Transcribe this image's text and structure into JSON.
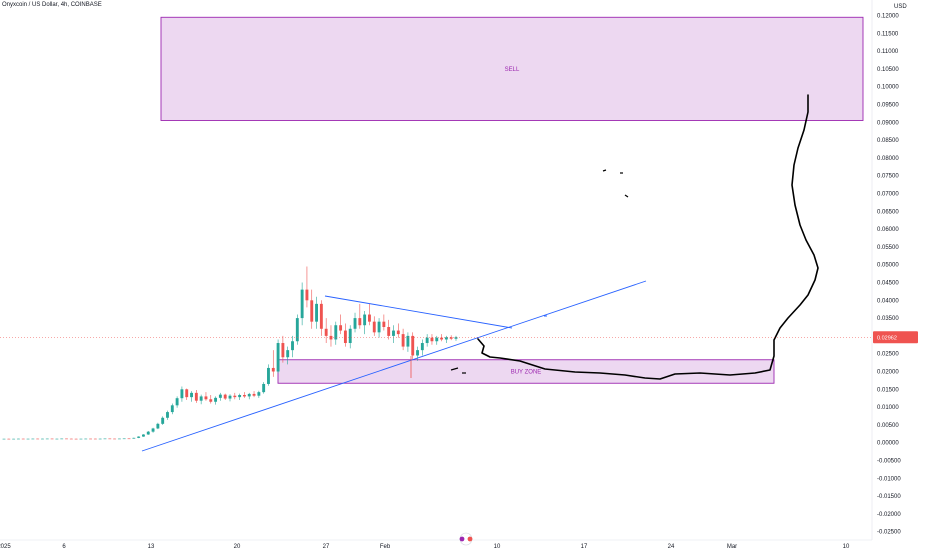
{
  "header": {
    "symbol_title": "Onyxcoin / US Dollar, 4h, COINBASE"
  },
  "colors": {
    "up": "#26a69a",
    "down": "#ef5350",
    "zone_fill": "rgba(156,39,176,0.18)",
    "zone_stroke": "#9c27b0",
    "trendline": "#2962ff",
    "drawing": "#000000",
    "price_tag": "#ef5350"
  },
  "chart_data": {
    "type": "candlestick",
    "y_unit": "USD",
    "ylim": [
      -0.025,
      0.122
    ],
    "y_ticks": [
      "0.12000",
      "0.11500",
      "0.11000",
      "0.10500",
      "0.10000",
      "0.09500",
      "0.09000",
      "0.08500",
      "0.08000",
      "0.07500",
      "0.07000",
      "0.06500",
      "0.06000",
      "0.05500",
      "0.05000",
      "0.04500",
      "0.04000",
      "0.03500",
      "0.03000",
      "0.02500",
      "0.02000",
      "0.01500",
      "0.01000",
      "0.00500",
      "0.00000",
      "-0.00500",
      "-0.01000",
      "-0.01500",
      "-0.02000",
      "-0.02500"
    ],
    "x_ticks": [
      "2025",
      "6",
      "13",
      "20",
      "27",
      "Feb",
      "10",
      "17",
      "24",
      "Mar",
      "10"
    ],
    "current_price": "0.02962",
    "current_price_value": 0.02962,
    "zones": [
      {
        "label": "SELL",
        "ymin": 0.0905,
        "ymax": 0.1195
      },
      {
        "label": "BUY ZONE",
        "ymin": 0.0167,
        "ymax": 0.0233
      }
    ],
    "candles": [
      [
        0.0011,
        0.00112,
        0.00108,
        0.0011
      ],
      [
        0.0011,
        0.00113,
        0.00107,
        0.00109
      ],
      [
        0.00109,
        0.00111,
        0.00106,
        0.0011
      ],
      [
        0.0011,
        0.00114,
        0.00108,
        0.00112
      ],
      [
        0.00112,
        0.00113,
        0.00107,
        0.00108
      ],
      [
        0.00108,
        0.00112,
        0.00106,
        0.00111
      ],
      [
        0.00111,
        0.00115,
        0.00109,
        0.00113
      ],
      [
        0.00113,
        0.00114,
        0.00108,
        0.00109
      ],
      [
        0.00109,
        0.00113,
        0.00107,
        0.00112
      ],
      [
        0.00112,
        0.00116,
        0.0011,
        0.00114
      ],
      [
        0.00114,
        0.00115,
        0.00109,
        0.0011
      ],
      [
        0.0011,
        0.00113,
        0.00107,
        0.00111
      ],
      [
        0.00111,
        0.00116,
        0.00109,
        0.00115
      ],
      [
        0.00115,
        0.00117,
        0.00111,
        0.00112
      ],
      [
        0.00112,
        0.00114,
        0.00108,
        0.0011
      ],
      [
        0.0011,
        0.00113,
        0.00106,
        0.00109
      ],
      [
        0.00109,
        0.00112,
        0.00106,
        0.00111
      ],
      [
        0.00111,
        0.00114,
        0.00108,
        0.00113
      ],
      [
        0.00113,
        0.00116,
        0.0011,
        0.00112
      ],
      [
        0.00112,
        0.00114,
        0.00108,
        0.00109
      ],
      [
        0.00109,
        0.00113,
        0.00107,
        0.00112
      ],
      [
        0.00112,
        0.00118,
        0.0011,
        0.00116
      ],
      [
        0.00116,
        0.00118,
        0.00111,
        0.00113
      ],
      [
        0.00113,
        0.00115,
        0.00109,
        0.00111
      ],
      [
        0.00111,
        0.00116,
        0.00109,
        0.00114
      ],
      [
        0.00114,
        0.0012,
        0.00112,
        0.00118
      ],
      [
        0.00118,
        0.00122,
        0.00113,
        0.00115
      ],
      [
        0.00115,
        0.0014,
        0.00113,
        0.00136
      ],
      [
        0.00136,
        0.0018,
        0.0013,
        0.00172
      ],
      [
        0.00172,
        0.0024,
        0.00165,
        0.0023
      ],
      [
        0.0023,
        0.0033,
        0.0022,
        0.0031
      ],
      [
        0.0031,
        0.0042,
        0.0028,
        0.004
      ],
      [
        0.004,
        0.0056,
        0.0038,
        0.0053
      ],
      [
        0.0053,
        0.0074,
        0.005,
        0.007
      ],
      [
        0.007,
        0.009,
        0.0064,
        0.0086
      ],
      [
        0.0086,
        0.011,
        0.008,
        0.0105
      ],
      [
        0.0105,
        0.013,
        0.0098,
        0.0125
      ],
      [
        0.0125,
        0.0158,
        0.0115,
        0.015
      ],
      [
        0.015,
        0.0152,
        0.012,
        0.0128
      ],
      [
        0.0128,
        0.0145,
        0.0115,
        0.014
      ],
      [
        0.014,
        0.0148,
        0.0112,
        0.0118
      ],
      [
        0.0118,
        0.0135,
        0.0108,
        0.013
      ],
      [
        0.013,
        0.0142,
        0.0118,
        0.0122
      ],
      [
        0.0122,
        0.0134,
        0.011,
        0.0115
      ],
      [
        0.0115,
        0.013,
        0.0107,
        0.0126
      ],
      [
        0.0126,
        0.014,
        0.0118,
        0.0135
      ],
      [
        0.0135,
        0.0138,
        0.012,
        0.0124
      ],
      [
        0.0124,
        0.0136,
        0.0116,
        0.0132
      ],
      [
        0.0132,
        0.014,
        0.0122,
        0.0128
      ],
      [
        0.0128,
        0.0138,
        0.012,
        0.0134
      ],
      [
        0.0134,
        0.0142,
        0.0126,
        0.013
      ],
      [
        0.013,
        0.014,
        0.0122,
        0.0137
      ],
      [
        0.0137,
        0.0145,
        0.0128,
        0.0132
      ],
      [
        0.0132,
        0.0146,
        0.0126,
        0.0142
      ],
      [
        0.0142,
        0.017,
        0.0138,
        0.0165
      ],
      [
        0.0165,
        0.022,
        0.016,
        0.021
      ],
      [
        0.021,
        0.026,
        0.0185,
        0.02
      ],
      [
        0.02,
        0.029,
        0.0195,
        0.028
      ],
      [
        0.028,
        0.03,
        0.0225,
        0.024
      ],
      [
        0.024,
        0.027,
        0.022,
        0.026
      ],
      [
        0.026,
        0.03,
        0.024,
        0.0285
      ],
      [
        0.0285,
        0.036,
        0.0275,
        0.035
      ],
      [
        0.035,
        0.045,
        0.033,
        0.043
      ],
      [
        0.043,
        0.0495,
        0.038,
        0.04
      ],
      [
        0.04,
        0.043,
        0.032,
        0.034
      ],
      [
        0.034,
        0.041,
        0.032,
        0.039
      ],
      [
        0.039,
        0.04,
        0.03,
        0.032
      ],
      [
        0.032,
        0.035,
        0.028,
        0.03
      ],
      [
        0.03,
        0.033,
        0.027,
        0.029
      ],
      [
        0.029,
        0.034,
        0.0275,
        0.033
      ],
      [
        0.033,
        0.036,
        0.0305,
        0.0315
      ],
      [
        0.0315,
        0.0335,
        0.027,
        0.028
      ],
      [
        0.028,
        0.033,
        0.0265,
        0.032
      ],
      [
        0.032,
        0.0365,
        0.031,
        0.035
      ],
      [
        0.035,
        0.039,
        0.032,
        0.033
      ],
      [
        0.033,
        0.037,
        0.0305,
        0.036
      ],
      [
        0.036,
        0.039,
        0.033,
        0.034
      ],
      [
        0.034,
        0.0355,
        0.03,
        0.031
      ],
      [
        0.031,
        0.035,
        0.0295,
        0.034
      ],
      [
        0.034,
        0.036,
        0.0315,
        0.0325
      ],
      [
        0.0325,
        0.0345,
        0.029,
        0.03
      ],
      [
        0.03,
        0.033,
        0.028,
        0.0315
      ],
      [
        0.0315,
        0.0335,
        0.0295,
        0.0305
      ],
      [
        0.0305,
        0.032,
        0.026,
        0.027
      ],
      [
        0.027,
        0.031,
        0.0255,
        0.03
      ],
      [
        0.03,
        0.031,
        0.0235,
        0.0245
      ],
      [
        0.0245,
        0.027,
        0.023,
        0.026
      ],
      [
        0.026,
        0.029,
        0.0245,
        0.028
      ],
      [
        0.028,
        0.0305,
        0.027,
        0.0295
      ],
      [
        0.0295,
        0.0305,
        0.0275,
        0.0285
      ],
      [
        0.0285,
        0.03,
        0.0275,
        0.0295
      ],
      [
        0.0295,
        0.0305,
        0.0285,
        0.029
      ],
      [
        0.029,
        0.03,
        0.028,
        0.0296
      ],
      [
        0.0296,
        0.0302,
        0.0288,
        0.0292
      ],
      [
        0.0292,
        0.03,
        0.0286,
        0.02962
      ]
    ]
  }
}
